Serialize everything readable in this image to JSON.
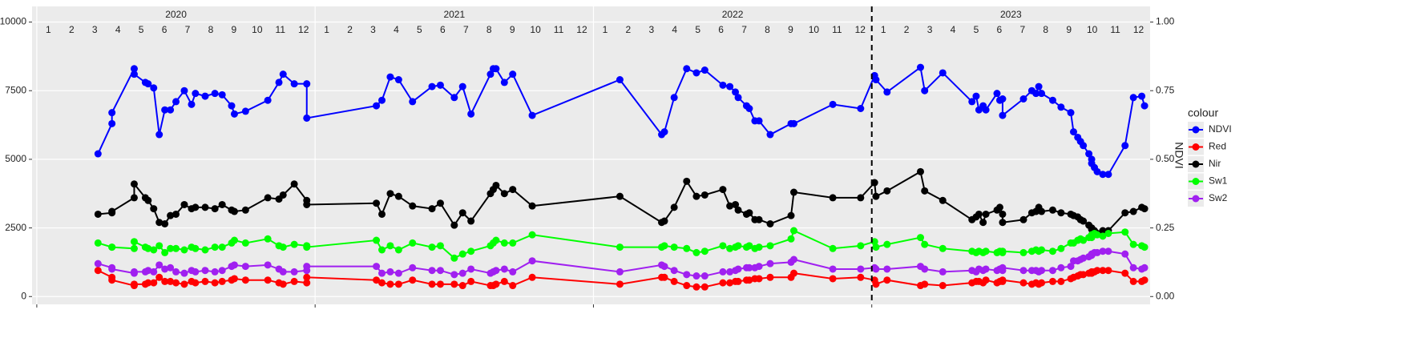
{
  "chart_data": {
    "type": "line",
    "y_label_right": "NDVI",
    "legend_title": "colour",
    "legend_position": "right",
    "years": [
      "2020",
      "2021",
      "2022",
      "2023"
    ],
    "months": [
      "1",
      "2",
      "3",
      "4",
      "5",
      "6",
      "7",
      "8",
      "9",
      "10",
      "11",
      "12"
    ],
    "xlim": [
      2019.983,
      2024.0
    ],
    "xticks": [
      2020,
      2021,
      2022,
      2023
    ],
    "vline": 2023,
    "ylim": [
      -284,
      10570
    ],
    "yticks": [
      0,
      2500,
      5000,
      7500,
      10000
    ],
    "y2lim": [
      -0.0284,
      1.057
    ],
    "y2ticks": [
      {
        "value": 0,
        "label": "0.00"
      },
      {
        "value": 0.25,
        "label": "0.25"
      },
      {
        "value": 0.5,
        "label": "0.50"
      },
      {
        "value": 0.75,
        "label": "0.75"
      },
      {
        "value": 1,
        "label": "1.00"
      }
    ],
    "grid": true,
    "x": [
      2020.22,
      2020.27,
      2020.27,
      2020.35,
      2020.35,
      2020.39,
      2020.4,
      2020.42,
      2020.44,
      2020.46,
      2020.48,
      2020.5,
      2020.53,
      2020.556,
      2020.57,
      2020.605,
      2020.64,
      2020.666,
      2020.7,
      2020.71,
      2020.75,
      2020.83,
      2020.87,
      2020.885,
      2020.925,
      2020.97,
      2020.97,
      2021.22,
      2021.24,
      2021.27,
      2021.3,
      2021.35,
      2021.42,
      2021.45,
      2021.5,
      2021.53,
      2021.56,
      2021.63,
      2021.64,
      2021.65,
      2021.68,
      2021.71,
      2021.78,
      2022.095,
      2022.245,
      2022.255,
      2022.29,
      2022.335,
      2022.37,
      2022.4,
      2022.465,
      2022.49,
      2022.51,
      2022.52,
      2022.55,
      2022.56,
      2022.58,
      2022.595,
      2022.635,
      2022.71,
      2022.72,
      2022.86,
      2022.96,
      2023.01,
      2023.015,
      2023.055,
      2023.175,
      2023.19,
      2023.255,
      2023.36,
      2023.375,
      2023.385,
      2023.4,
      2023.41,
      2023.45,
      2023.46,
      2023.47,
      2023.47,
      2023.545,
      2023.575,
      2023.59,
      2023.6,
      2023.61,
      2023.65,
      2023.68,
      2023.715,
      2023.725,
      2023.74,
      2023.75,
      2023.76,
      2023.78,
      2023.79,
      2023.79,
      2023.8,
      2023.81,
      2023.83,
      2023.85,
      2023.91,
      2023.94,
      2023.97,
      2023.98
    ],
    "series": [
      {
        "name": "NDVI",
        "color": "#0000ff",
        "axis": "y2",
        "values": [
          0.52,
          0.63,
          0.67,
          0.83,
          0.81,
          0.78,
          0.775,
          0.76,
          0.59,
          0.68,
          0.68,
          0.71,
          0.75,
          0.7,
          0.74,
          0.73,
          0.74,
          0.735,
          0.695,
          0.665,
          0.675,
          0.715,
          0.78,
          0.81,
          0.775,
          0.775,
          0.65,
          0.695,
          0.715,
          0.8,
          0.79,
          0.71,
          0.765,
          0.77,
          0.725,
          0.765,
          0.665,
          0.81,
          0.83,
          0.83,
          0.78,
          0.81,
          0.66,
          0.79,
          0.59,
          0.6,
          0.725,
          0.83,
          0.815,
          0.825,
          0.77,
          0.765,
          0.745,
          0.725,
          0.695,
          0.685,
          0.64,
          0.64,
          0.59,
          0.63,
          0.63,
          0.7,
          0.685,
          0.805,
          0.79,
          0.745,
          0.835,
          0.75,
          0.815,
          0.71,
          0.73,
          0.68,
          0.695,
          0.68,
          0.74,
          0.715,
          0.72,
          0.66,
          0.72,
          0.75,
          0.74,
          0.765,
          0.74,
          0.715,
          0.69,
          0.67,
          0.6,
          0.58,
          0.565,
          0.55,
          0.52,
          0.5,
          0.485,
          0.47,
          0.455,
          0.445,
          0.445,
          0.55,
          0.725,
          0.73,
          0.695
        ]
      },
      {
        "name": "Red",
        "color": "#ff0000",
        "values": [
          950,
          700,
          600,
          400,
          450,
          450,
          500,
          500,
          700,
          550,
          550,
          500,
          450,
          550,
          500,
          550,
          500,
          550,
          600,
          650,
          600,
          600,
          500,
          450,
          550,
          500,
          700,
          600,
          500,
          450,
          450,
          600,
          450,
          450,
          450,
          400,
          550,
          400,
          400,
          450,
          550,
          400,
          700,
          450,
          700,
          700,
          550,
          400,
          350,
          350,
          500,
          500,
          550,
          550,
          600,
          600,
          650,
          650,
          700,
          700,
          850,
          650,
          700,
          600,
          450,
          600,
          400,
          450,
          400,
          500,
          550,
          550,
          500,
          600,
          500,
          550,
          550,
          600,
          500,
          450,
          500,
          450,
          500,
          550,
          550,
          650,
          700,
          750,
          800,
          800,
          850,
          850,
          900,
          900,
          950,
          950,
          950,
          850,
          550,
          550,
          600
        ]
      },
      {
        "name": "Nir",
        "color": "#000000",
        "values": [
          3000,
          3050,
          3100,
          3600,
          4100,
          3600,
          3500,
          3200,
          2700,
          2650,
          2950,
          3000,
          3350,
          3200,
          3250,
          3250,
          3200,
          3350,
          3150,
          3100,
          3150,
          3600,
          3550,
          3700,
          4100,
          3500,
          3350,
          3400,
          3000,
          3750,
          3650,
          3300,
          3200,
          3400,
          2600,
          3050,
          2750,
          3750,
          3900,
          4050,
          3750,
          3900,
          3300,
          3650,
          2700,
          2750,
          3250,
          4200,
          3650,
          3700,
          3900,
          3300,
          3350,
          3150,
          3000,
          3050,
          2800,
          2800,
          2650,
          2950,
          3800,
          3600,
          3600,
          4150,
          3650,
          3850,
          4550,
          3850,
          3500,
          2800,
          2900,
          3000,
          2700,
          3000,
          3150,
          3250,
          3000,
          2700,
          2800,
          3050,
          3100,
          3250,
          3100,
          3150,
          3050,
          3000,
          2950,
          2900,
          2800,
          2750,
          2600,
          2500,
          2450,
          2400,
          2300,
          2400,
          2400,
          3050,
          3100,
          3250,
          3200
        ]
      },
      {
        "name": "Sw1",
        "color": "#00ff00",
        "values": [
          1950,
          1800,
          1800,
          1750,
          2000,
          1800,
          1750,
          1700,
          1850,
          1600,
          1750,
          1750,
          1700,
          1800,
          1750,
          1700,
          1800,
          1800,
          1950,
          2050,
          1950,
          2100,
          1850,
          1800,
          1900,
          1850,
          1800,
          2050,
          1700,
          1850,
          1700,
          1950,
          1800,
          1850,
          1400,
          1550,
          1650,
          1850,
          1950,
          2050,
          1950,
          1950,
          2250,
          1800,
          1800,
          1850,
          1800,
          1750,
          1600,
          1650,
          1850,
          1750,
          1800,
          1850,
          1800,
          1850,
          1750,
          1800,
          1850,
          2100,
          2400,
          1750,
          1850,
          2000,
          1800,
          1900,
          2150,
          1900,
          1750,
          1650,
          1600,
          1650,
          1600,
          1650,
          1600,
          1650,
          1600,
          1650,
          1600,
          1650,
          1700,
          1650,
          1700,
          1650,
          1750,
          1950,
          1950,
          2050,
          2100,
          2050,
          2150,
          2250,
          2150,
          2300,
          2250,
          2200,
          2300,
          2350,
          1900,
          1850,
          1800
        ]
      },
      {
        "name": "Sw2",
        "color": "#a020f0",
        "values": [
          1200,
          1050,
          1000,
          850,
          900,
          900,
          950,
          900,
          1150,
          1000,
          1050,
          900,
          850,
          950,
          900,
          950,
          900,
          950,
          1100,
          1150,
          1100,
          1150,
          1000,
          900,
          900,
          950,
          1100,
          1100,
          850,
          900,
          850,
          1050,
          950,
          950,
          800,
          850,
          1000,
          850,
          900,
          950,
          1000,
          900,
          1300,
          900,
          1150,
          1100,
          950,
          800,
          750,
          750,
          900,
          900,
          950,
          1000,
          1050,
          1050,
          1050,
          1100,
          1200,
          1250,
          1350,
          1000,
          1000,
          1050,
          1000,
          1000,
          1100,
          1000,
          900,
          950,
          900,
          1000,
          950,
          1000,
          950,
          1000,
          950,
          1050,
          950,
          950,
          950,
          900,
          950,
          950,
          1050,
          1100,
          1300,
          1300,
          1350,
          1400,
          1450,
          1500,
          1550,
          1600,
          1600,
          1650,
          1650,
          1550,
          1050,
          1000,
          1050
        ]
      }
    ]
  }
}
